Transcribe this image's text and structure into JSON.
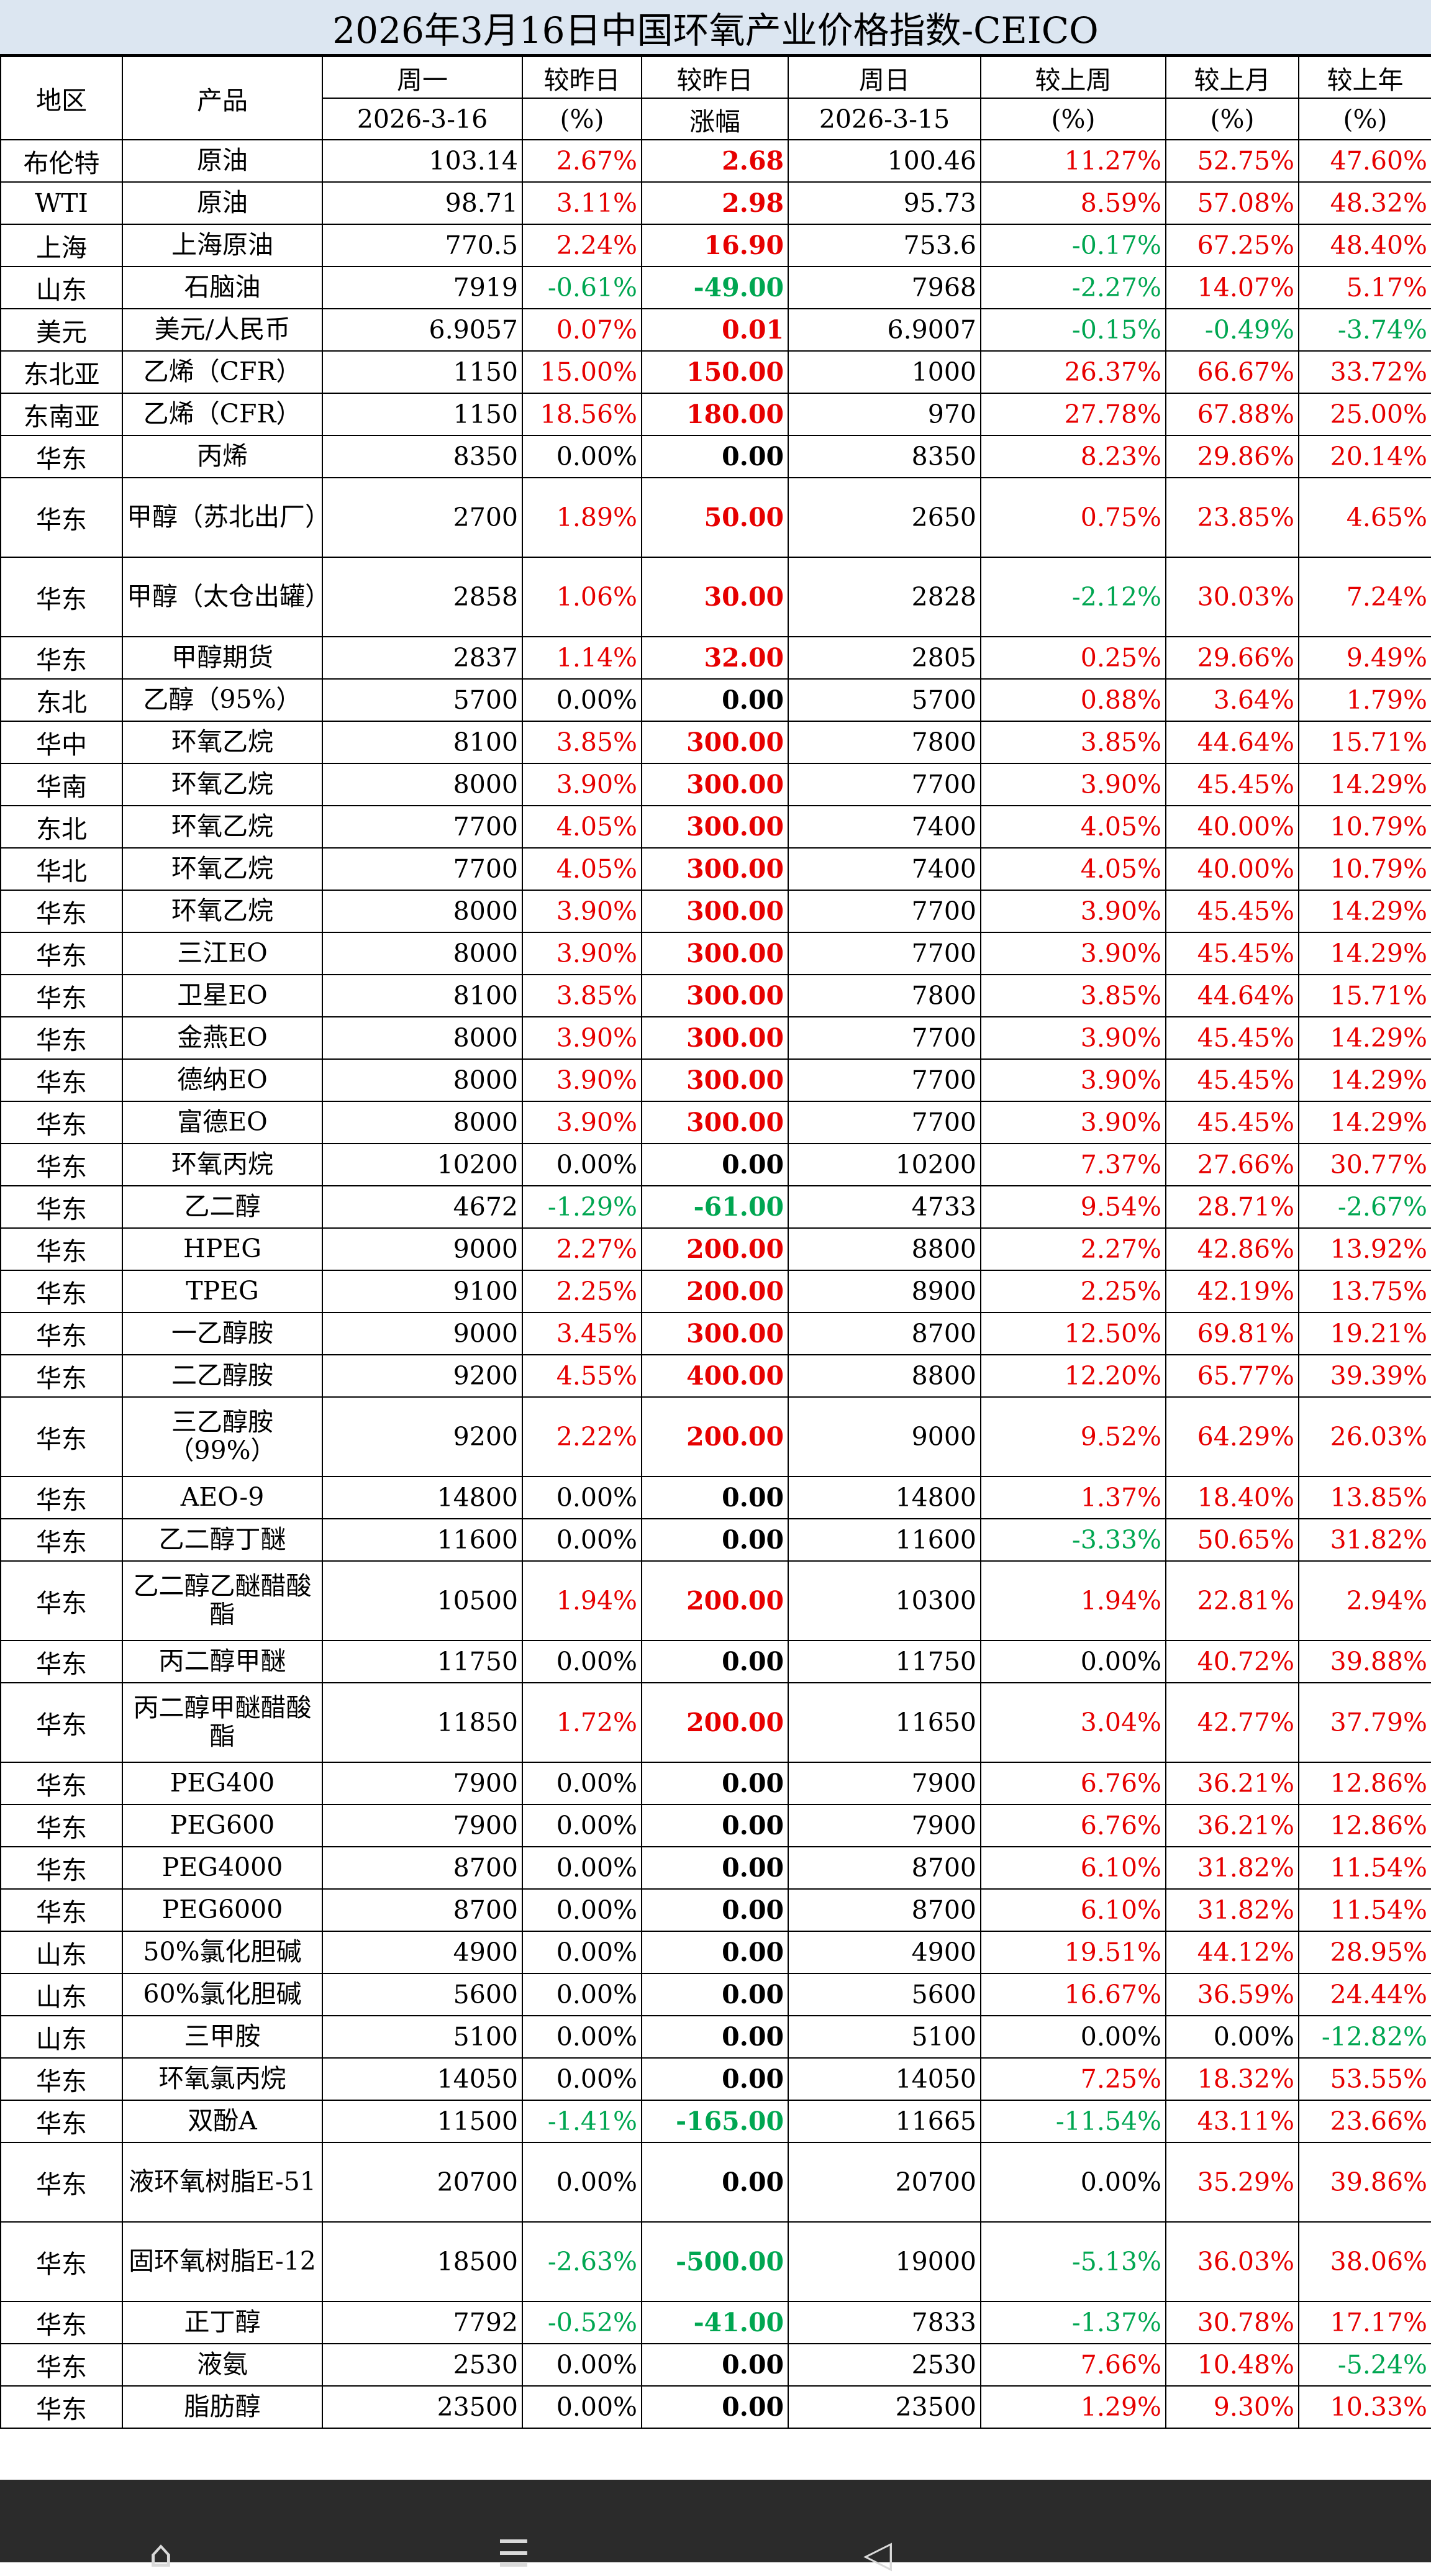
{
  "title": "2026年3月16日中国环氧产业价格指数-CEICO",
  "headers": {
    "region": "地区",
    "product": "产品",
    "today": "周一",
    "today_date": "2026-3-16",
    "pct_prev": "较昨日",
    "pct_prev_unit": "(%)",
    "chg_prev": "较昨日",
    "chg_prev_unit": "涨幅",
    "prev": "周日",
    "prev_date": "2026-3-15",
    "week": "较上周",
    "week_unit": "(%)",
    "month": "较上月",
    "month_unit": "(%)",
    "year": "较上年",
    "year_unit": "(%)"
  },
  "colors": {
    "up": "#e60000",
    "down": "#00a651",
    "flat": "#000000",
    "title_bg": "#dce6f1"
  },
  "rows": [
    {
      "region": "布伦特",
      "product": "原油",
      "today": "103.14",
      "pct": "2.67%",
      "chg": "2.68",
      "prev": "100.46",
      "week": "11.27%",
      "month": "52.75%",
      "year": "47.60%"
    },
    {
      "region": "WTI",
      "product": "原油",
      "today": "98.71",
      "pct": "3.11%",
      "chg": "2.98",
      "prev": "95.73",
      "week": "8.59%",
      "month": "57.08%",
      "year": "48.32%"
    },
    {
      "region": "上海",
      "product": "上海原油",
      "today": "770.5",
      "pct": "2.24%",
      "chg": "16.90",
      "prev": "753.6",
      "week": "-0.17%",
      "month": "67.25%",
      "year": "48.40%"
    },
    {
      "region": "山东",
      "product": "石脑油",
      "today": "7919",
      "pct": "-0.61%",
      "chg": "-49.00",
      "prev": "7968",
      "week": "-2.27%",
      "month": "14.07%",
      "year": "5.17%"
    },
    {
      "region": "美元",
      "product": "美元/人民币",
      "today": "6.9057",
      "pct": "0.07%",
      "chg": "0.01",
      "prev": "6.9007",
      "week": "-0.15%",
      "month": "-0.49%",
      "year": "-3.74%"
    },
    {
      "region": "东北亚",
      "product": "乙烯（CFR）",
      "today": "1150",
      "pct": "15.00%",
      "chg": "150.00",
      "prev": "1000",
      "week": "26.37%",
      "month": "66.67%",
      "year": "33.72%"
    },
    {
      "region": "东南亚",
      "product": "乙烯（CFR）",
      "today": "1150",
      "pct": "18.56%",
      "chg": "180.00",
      "prev": "970",
      "week": "27.78%",
      "month": "67.88%",
      "year": "25.00%"
    },
    {
      "region": "华东",
      "product": "丙烯",
      "today": "8350",
      "pct": "0.00%",
      "chg": "0.00",
      "prev": "8350",
      "week": "8.23%",
      "month": "29.86%",
      "year": "20.14%"
    },
    {
      "region": "华东",
      "product": "甲醇（苏北出厂）",
      "today": "2700",
      "pct": "1.89%",
      "chg": "50.00",
      "prev": "2650",
      "week": "0.75%",
      "month": "23.85%",
      "year": "4.65%",
      "tall": true
    },
    {
      "region": "华东",
      "product": "甲醇（太仓出罐）",
      "today": "2858",
      "pct": "1.06%",
      "chg": "30.00",
      "prev": "2828",
      "week": "-2.12%",
      "month": "30.03%",
      "year": "7.24%",
      "tall": true
    },
    {
      "region": "华东",
      "product": "甲醇期货",
      "today": "2837",
      "pct": "1.14%",
      "chg": "32.00",
      "prev": "2805",
      "week": "0.25%",
      "month": "29.66%",
      "year": "9.49%"
    },
    {
      "region": "东北",
      "product": "乙醇（95%）",
      "today": "5700",
      "pct": "0.00%",
      "chg": "0.00",
      "prev": "5700",
      "week": "0.88%",
      "month": "3.64%",
      "year": "1.79%"
    },
    {
      "region": "华中",
      "product": "环氧乙烷",
      "today": "8100",
      "pct": "3.85%",
      "chg": "300.00",
      "prev": "7800",
      "week": "3.85%",
      "month": "44.64%",
      "year": "15.71%"
    },
    {
      "region": "华南",
      "product": "环氧乙烷",
      "today": "8000",
      "pct": "3.90%",
      "chg": "300.00",
      "prev": "7700",
      "week": "3.90%",
      "month": "45.45%",
      "year": "14.29%"
    },
    {
      "region": "东北",
      "product": "环氧乙烷",
      "today": "7700",
      "pct": "4.05%",
      "chg": "300.00",
      "prev": "7400",
      "week": "4.05%",
      "month": "40.00%",
      "year": "10.79%"
    },
    {
      "region": "华北",
      "product": "环氧乙烷",
      "today": "7700",
      "pct": "4.05%",
      "chg": "300.00",
      "prev": "7400",
      "week": "4.05%",
      "month": "40.00%",
      "year": "10.79%"
    },
    {
      "region": "华东",
      "product": "环氧乙烷",
      "today": "8000",
      "pct": "3.90%",
      "chg": "300.00",
      "prev": "7700",
      "week": "3.90%",
      "month": "45.45%",
      "year": "14.29%"
    },
    {
      "region": "华东",
      "product": "三江EO",
      "today": "8000",
      "pct": "3.90%",
      "chg": "300.00",
      "prev": "7700",
      "week": "3.90%",
      "month": "45.45%",
      "year": "14.29%"
    },
    {
      "region": "华东",
      "product": "卫星EO",
      "today": "8100",
      "pct": "3.85%",
      "chg": "300.00",
      "prev": "7800",
      "week": "3.85%",
      "month": "44.64%",
      "year": "15.71%"
    },
    {
      "region": "华东",
      "product": "金燕EO",
      "today": "8000",
      "pct": "3.90%",
      "chg": "300.00",
      "prev": "7700",
      "week": "3.90%",
      "month": "45.45%",
      "year": "14.29%"
    },
    {
      "region": "华东",
      "product": "德纳EO",
      "today": "8000",
      "pct": "3.90%",
      "chg": "300.00",
      "prev": "7700",
      "week": "3.90%",
      "month": "45.45%",
      "year": "14.29%"
    },
    {
      "region": "华东",
      "product": "富德EO",
      "today": "8000",
      "pct": "3.90%",
      "chg": "300.00",
      "prev": "7700",
      "week": "3.90%",
      "month": "45.45%",
      "year": "14.29%"
    },
    {
      "region": "华东",
      "product": "环氧丙烷",
      "today": "10200",
      "pct": "0.00%",
      "chg": "0.00",
      "prev": "10200",
      "week": "7.37%",
      "month": "27.66%",
      "year": "30.77%"
    },
    {
      "region": "华东",
      "product": "乙二醇",
      "today": "4672",
      "pct": "-1.29%",
      "chg": "-61.00",
      "prev": "4733",
      "week": "9.54%",
      "month": "28.71%",
      "year": "-2.67%"
    },
    {
      "region": "华东",
      "product": "HPEG",
      "today": "9000",
      "pct": "2.27%",
      "chg": "200.00",
      "prev": "8800",
      "week": "2.27%",
      "month": "42.86%",
      "year": "13.92%"
    },
    {
      "region": "华东",
      "product": "TPEG",
      "today": "9100",
      "pct": "2.25%",
      "chg": "200.00",
      "prev": "8900",
      "week": "2.25%",
      "month": "42.19%",
      "year": "13.75%"
    },
    {
      "region": "华东",
      "product": "一乙醇胺",
      "today": "9000",
      "pct": "3.45%",
      "chg": "300.00",
      "prev": "8700",
      "week": "12.50%",
      "month": "69.81%",
      "year": "19.21%"
    },
    {
      "region": "华东",
      "product": "二乙醇胺",
      "today": "9200",
      "pct": "4.55%",
      "chg": "400.00",
      "prev": "8800",
      "week": "12.20%",
      "month": "65.77%",
      "year": "39.39%"
    },
    {
      "region": "华东",
      "product": "三乙醇胺（99%）",
      "today": "9200",
      "pct": "2.22%",
      "chg": "200.00",
      "prev": "9000",
      "week": "9.52%",
      "month": "64.29%",
      "year": "26.03%",
      "tall": true
    },
    {
      "region": "华东",
      "product": "AEO-9",
      "today": "14800",
      "pct": "0.00%",
      "chg": "0.00",
      "prev": "14800",
      "week": "1.37%",
      "month": "18.40%",
      "year": "13.85%"
    },
    {
      "region": "华东",
      "product": "乙二醇丁醚",
      "today": "11600",
      "pct": "0.00%",
      "chg": "0.00",
      "prev": "11600",
      "week": "-3.33%",
      "month": "50.65%",
      "year": "31.82%"
    },
    {
      "region": "华东",
      "product": "乙二醇乙醚醋酸酯",
      "today": "10500",
      "pct": "1.94%",
      "chg": "200.00",
      "prev": "10300",
      "week": "1.94%",
      "month": "22.81%",
      "year": "2.94%",
      "tall": true
    },
    {
      "region": "华东",
      "product": "丙二醇甲醚",
      "today": "11750",
      "pct": "0.00%",
      "chg": "0.00",
      "prev": "11750",
      "week": "0.00%",
      "month": "40.72%",
      "year": "39.88%"
    },
    {
      "region": "华东",
      "product": "丙二醇甲醚醋酸酯",
      "today": "11850",
      "pct": "1.72%",
      "chg": "200.00",
      "prev": "11650",
      "week": "3.04%",
      "month": "42.77%",
      "year": "37.79%",
      "tall": true
    },
    {
      "region": "华东",
      "product": "PEG400",
      "today": "7900",
      "pct": "0.00%",
      "chg": "0.00",
      "prev": "7900",
      "week": "6.76%",
      "month": "36.21%",
      "year": "12.86%"
    },
    {
      "region": "华东",
      "product": "PEG600",
      "today": "7900",
      "pct": "0.00%",
      "chg": "0.00",
      "prev": "7900",
      "week": "6.76%",
      "month": "36.21%",
      "year": "12.86%"
    },
    {
      "region": "华东",
      "product": "PEG4000",
      "today": "8700",
      "pct": "0.00%",
      "chg": "0.00",
      "prev": "8700",
      "week": "6.10%",
      "month": "31.82%",
      "year": "11.54%"
    },
    {
      "region": "华东",
      "product": "PEG6000",
      "today": "8700",
      "pct": "0.00%",
      "chg": "0.00",
      "prev": "8700",
      "week": "6.10%",
      "month": "31.82%",
      "year": "11.54%"
    },
    {
      "region": "山东",
      "product": "50%氯化胆碱",
      "today": "4900",
      "pct": "0.00%",
      "chg": "0.00",
      "prev": "4900",
      "week": "19.51%",
      "month": "44.12%",
      "year": "28.95%"
    },
    {
      "region": "山东",
      "product": "60%氯化胆碱",
      "today": "5600",
      "pct": "0.00%",
      "chg": "0.00",
      "prev": "5600",
      "week": "16.67%",
      "month": "36.59%",
      "year": "24.44%"
    },
    {
      "region": "山东",
      "product": "三甲胺",
      "today": "5100",
      "pct": "0.00%",
      "chg": "0.00",
      "prev": "5100",
      "week": "0.00%",
      "month": "0.00%",
      "year": "-12.82%"
    },
    {
      "region": "华东",
      "product": "环氧氯丙烷",
      "today": "14050",
      "pct": "0.00%",
      "chg": "0.00",
      "prev": "14050",
      "week": "7.25%",
      "month": "18.32%",
      "year": "53.55%"
    },
    {
      "region": "华东",
      "product": "双酚A",
      "today": "11500",
      "pct": "-1.41%",
      "chg": "-165.00",
      "prev": "11665",
      "week": "-11.54%",
      "month": "43.11%",
      "year": "23.66%"
    },
    {
      "region": "华东",
      "product": "液环氧树脂E-51",
      "today": "20700",
      "pct": "0.00%",
      "chg": "0.00",
      "prev": "20700",
      "week": "0.00%",
      "month": "35.29%",
      "year": "39.86%",
      "tall": true
    },
    {
      "region": "华东",
      "product": "固环氧树脂E-12",
      "today": "18500",
      "pct": "-2.63%",
      "chg": "-500.00",
      "prev": "19000",
      "week": "-5.13%",
      "month": "36.03%",
      "year": "38.06%",
      "tall": true
    },
    {
      "region": "华东",
      "product": "正丁醇",
      "today": "7792",
      "pct": "-0.52%",
      "chg": "-41.00",
      "prev": "7833",
      "week": "-1.37%",
      "month": "30.78%",
      "year": "17.17%"
    },
    {
      "region": "华东",
      "product": "液氨",
      "today": "2530",
      "pct": "0.00%",
      "chg": "0.00",
      "prev": "2530",
      "week": "7.66%",
      "month": "10.48%",
      "year": "-5.24%"
    },
    {
      "region": "华东",
      "product": "脂肪醇",
      "today": "23500",
      "pct": "0.00%",
      "chg": "0.00",
      "prev": "23500",
      "week": "1.29%",
      "month": "9.30%",
      "year": "10.33%"
    }
  ]
}
